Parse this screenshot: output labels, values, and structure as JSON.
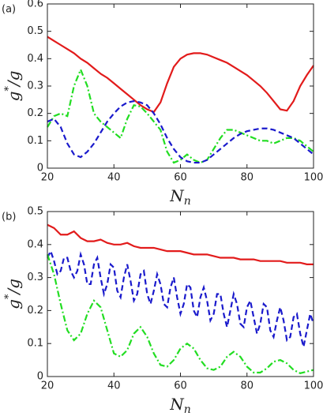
{
  "chart_data": [
    {
      "type": "line",
      "panel_label": "(a)",
      "xlabel": {
        "main": "N",
        "sub": "n"
      },
      "ylabel": {
        "main": "g",
        "sup": "*",
        "rest": "/g"
      },
      "xlim": [
        20,
        100
      ],
      "xticks": [
        20,
        40,
        60,
        80,
        100
      ],
      "ylim": [
        0,
        0.6
      ],
      "yticks": [
        0,
        0.1,
        0.2,
        0.3,
        0.4,
        0.5,
        0.6
      ],
      "x": [
        20,
        22,
        24,
        26,
        28,
        30,
        32,
        34,
        36,
        38,
        40,
        42,
        44,
        46,
        48,
        50,
        52,
        54,
        56,
        58,
        60,
        62,
        64,
        66,
        68,
        70,
        72,
        74,
        76,
        78,
        80,
        82,
        84,
        86,
        88,
        90,
        92,
        94,
        96,
        98,
        100
      ],
      "series": [
        {
          "color": "#e21b1b",
          "dash": "solid",
          "values": [
            0.48,
            0.465,
            0.45,
            0.435,
            0.42,
            0.4,
            0.385,
            0.365,
            0.345,
            0.33,
            0.31,
            0.29,
            0.27,
            0.25,
            0.23,
            0.215,
            0.205,
            0.24,
            0.31,
            0.37,
            0.4,
            0.415,
            0.42,
            0.42,
            0.415,
            0.405,
            0.395,
            0.385,
            0.37,
            0.355,
            0.34,
            0.32,
            0.3,
            0.275,
            0.245,
            0.215,
            0.21,
            0.245,
            0.3,
            0.34,
            0.375
          ]
        },
        {
          "color": "#22dd22",
          "dash": "dashdot",
          "values": [
            0.15,
            0.19,
            0.2,
            0.19,
            0.3,
            0.36,
            0.3,
            0.2,
            0.17,
            0.15,
            0.13,
            0.11,
            0.18,
            0.23,
            0.225,
            0.2,
            0.17,
            0.14,
            0.06,
            0.02,
            0.03,
            0.05,
            0.03,
            0.02,
            0.03,
            0.07,
            0.11,
            0.14,
            0.14,
            0.13,
            0.12,
            0.11,
            0.1,
            0.1,
            0.09,
            0.1,
            0.11,
            0.11,
            0.1,
            0.08,
            0.06
          ]
        },
        {
          "color": "#1a1acc",
          "dash": "dashed",
          "values": [
            0.17,
            0.18,
            0.15,
            0.09,
            0.05,
            0.04,
            0.06,
            0.09,
            0.13,
            0.17,
            0.2,
            0.225,
            0.24,
            0.245,
            0.24,
            0.23,
            0.2,
            0.16,
            0.11,
            0.07,
            0.04,
            0.025,
            0.02,
            0.02,
            0.03,
            0.05,
            0.07,
            0.09,
            0.11,
            0.125,
            0.135,
            0.14,
            0.145,
            0.145,
            0.14,
            0.13,
            0.12,
            0.11,
            0.09,
            0.07,
            0.05
          ]
        }
      ]
    },
    {
      "type": "line",
      "panel_label": "(b)",
      "xlabel": {
        "main": "N",
        "sub": "n"
      },
      "ylabel": {
        "main": "g",
        "sup": "*",
        "rest": "/g"
      },
      "xlim": [
        20,
        100
      ],
      "xticks": [
        20,
        40,
        60,
        80,
        100
      ],
      "ylim": [
        0,
        0.5
      ],
      "yticks": [
        0,
        0.1,
        0.2,
        0.3,
        0.4,
        0.5
      ],
      "x": [
        20,
        22,
        24,
        26,
        28,
        30,
        32,
        34,
        36,
        38,
        40,
        42,
        44,
        46,
        48,
        50,
        52,
        54,
        56,
        58,
        60,
        62,
        64,
        66,
        68,
        70,
        72,
        74,
        76,
        78,
        80,
        82,
        84,
        86,
        88,
        90,
        92,
        94,
        96,
        98,
        100
      ],
      "series": [
        {
          "color": "#e21b1b",
          "dash": "solid",
          "values": [
            0.46,
            0.45,
            0.43,
            0.43,
            0.44,
            0.42,
            0.41,
            0.41,
            0.415,
            0.405,
            0.4,
            0.4,
            0.405,
            0.395,
            0.39,
            0.39,
            0.39,
            0.385,
            0.38,
            0.38,
            0.38,
            0.375,
            0.37,
            0.37,
            0.37,
            0.365,
            0.36,
            0.36,
            0.36,
            0.355,
            0.355,
            0.355,
            0.35,
            0.35,
            0.35,
            0.35,
            0.345,
            0.345,
            0.345,
            0.34,
            0.34
          ]
        },
        {
          "color": "#1a1acc",
          "dash": "dashed",
          "x": [
            20,
            21,
            22,
            23,
            24,
            25,
            26,
            27,
            28,
            29,
            30,
            31,
            32,
            33,
            34,
            35,
            36,
            37,
            38,
            39,
            40,
            41,
            42,
            43,
            44,
            45,
            46,
            47,
            48,
            49,
            50,
            51,
            52,
            53,
            54,
            55,
            56,
            57,
            58,
            59,
            60,
            61,
            62,
            63,
            64,
            65,
            66,
            67,
            68,
            69,
            70,
            71,
            72,
            73,
            74,
            75,
            76,
            77,
            78,
            79,
            80,
            81,
            82,
            83,
            84,
            85,
            86,
            87,
            88,
            89,
            90,
            91,
            92,
            93,
            94,
            95,
            96,
            97,
            98,
            99,
            100
          ],
          "values": [
            0.36,
            0.38,
            0.35,
            0.31,
            0.32,
            0.36,
            0.36,
            0.32,
            0.3,
            0.32,
            0.37,
            0.34,
            0.28,
            0.28,
            0.34,
            0.36,
            0.3,
            0.25,
            0.28,
            0.34,
            0.33,
            0.26,
            0.24,
            0.3,
            0.34,
            0.29,
            0.23,
            0.25,
            0.31,
            0.32,
            0.25,
            0.22,
            0.26,
            0.31,
            0.28,
            0.22,
            0.21,
            0.27,
            0.3,
            0.24,
            0.19,
            0.22,
            0.28,
            0.27,
            0.2,
            0.18,
            0.24,
            0.27,
            0.23,
            0.17,
            0.19,
            0.25,
            0.25,
            0.19,
            0.15,
            0.2,
            0.25,
            0.22,
            0.16,
            0.15,
            0.21,
            0.23,
            0.18,
            0.13,
            0.16,
            0.22,
            0.21,
            0.14,
            0.12,
            0.17,
            0.21,
            0.17,
            0.11,
            0.12,
            0.18,
            0.19,
            0.13,
            0.09,
            0.14,
            0.19,
            0.16
          ]
        },
        {
          "color": "#22dd22",
          "dash": "dashdot",
          "values": [
            0.37,
            0.31,
            0.22,
            0.14,
            0.11,
            0.13,
            0.19,
            0.23,
            0.21,
            0.14,
            0.07,
            0.06,
            0.08,
            0.13,
            0.15,
            0.12,
            0.07,
            0.035,
            0.03,
            0.05,
            0.085,
            0.1,
            0.085,
            0.05,
            0.025,
            0.02,
            0.03,
            0.06,
            0.075,
            0.06,
            0.03,
            0.012,
            0.012,
            0.025,
            0.045,
            0.05,
            0.04,
            0.02,
            0.01,
            0.015,
            0.02
          ]
        }
      ]
    }
  ]
}
